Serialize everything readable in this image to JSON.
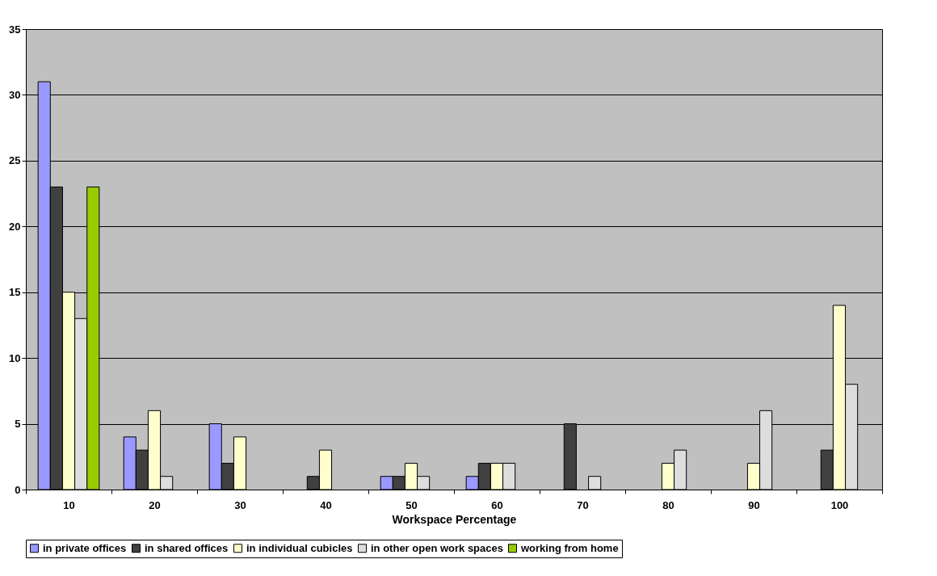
{
  "chart_data": {
    "type": "bar",
    "xlabel": "Workspace Percentage",
    "categories": [
      "10",
      "20",
      "30",
      "40",
      "50",
      "60",
      "70",
      "80",
      "90",
      "100"
    ],
    "series": [
      {
        "name": "in private offices",
        "color": "#9999ff",
        "values": [
          31,
          4,
          5,
          null,
          1,
          1,
          null,
          null,
          null,
          null
        ]
      },
      {
        "name": "in shared offices",
        "color": "#404040",
        "values": [
          23,
          3,
          2,
          1,
          1,
          2,
          5,
          null,
          null,
          3
        ]
      },
      {
        "name": "in individual cubicles",
        "color": "#ffffcc",
        "values": [
          15,
          6,
          4,
          3,
          2,
          2,
          null,
          2,
          2,
          14
        ]
      },
      {
        "name": "in other open work spaces",
        "color": "#dddddd",
        "values": [
          13,
          1,
          null,
          null,
          1,
          2,
          1,
          3,
          6,
          8
        ]
      },
      {
        "name": "working from home",
        "color": "#99cc00",
        "values": [
          23,
          null,
          null,
          null,
          null,
          null,
          null,
          null,
          null,
          null
        ]
      }
    ],
    "ylim": [
      0,
      35
    ],
    "yticks": [
      0,
      5,
      10,
      15,
      20,
      25,
      30,
      35
    ],
    "grid": "y",
    "legend": "bottom"
  }
}
